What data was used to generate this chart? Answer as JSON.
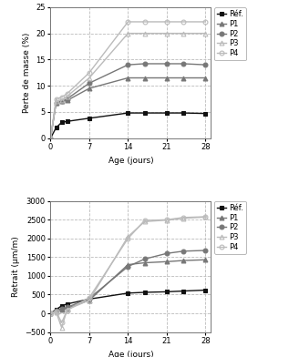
{
  "top_chart": {
    "ylabel": "Perte de masse (%)",
    "xlabel": "Age (jours)",
    "ylim": [
      0,
      25
    ],
    "yticks": [
      0,
      5,
      10,
      15,
      20,
      25
    ],
    "xticks": [
      0,
      7,
      14,
      21,
      28
    ],
    "series": {
      "Réf.": {
        "x": [
          0,
          1,
          2,
          3,
          7,
          14,
          17,
          21,
          24,
          28
        ],
        "y": [
          0,
          2.0,
          3.0,
          3.2,
          3.8,
          4.8,
          4.8,
          4.8,
          4.8,
          4.7
        ],
        "marker": "s",
        "color": "#111111",
        "fillstyle": "full",
        "linewidth": 1.0,
        "markersize": 3.5
      },
      "P1": {
        "x": [
          0,
          1,
          2,
          3,
          7,
          14,
          17,
          21,
          24,
          28
        ],
        "y": [
          0,
          6.8,
          7.0,
          7.2,
          9.5,
          11.5,
          11.5,
          11.5,
          11.5,
          11.5
        ],
        "marker": "^",
        "color": "#777777",
        "fillstyle": "full",
        "linewidth": 1.0,
        "markersize": 3.5
      },
      "P2": {
        "x": [
          0,
          1,
          2,
          3,
          7,
          14,
          17,
          21,
          24,
          28
        ],
        "y": [
          0,
          6.8,
          7.0,
          7.5,
          10.5,
          14.0,
          14.2,
          14.2,
          14.2,
          14.0
        ],
        "marker": "o",
        "color": "#777777",
        "fillstyle": "full",
        "linewidth": 1.0,
        "markersize": 3.5
      },
      "P3": {
        "x": [
          0,
          1,
          2,
          3,
          7,
          14,
          17,
          21,
          24,
          28
        ],
        "y": [
          0,
          7.0,
          7.3,
          8.0,
          11.5,
          20.0,
          20.0,
          20.0,
          20.0,
          20.0
        ],
        "marker": "^",
        "color": "#bbbbbb",
        "fillstyle": "none",
        "linewidth": 1.0,
        "markersize": 3.5
      },
      "P4": {
        "x": [
          0,
          1,
          2,
          3,
          7,
          14,
          17,
          21,
          24,
          28
        ],
        "y": [
          0,
          7.5,
          7.8,
          8.5,
          12.5,
          22.2,
          22.2,
          22.2,
          22.2,
          22.2
        ],
        "marker": "o",
        "color": "#bbbbbb",
        "fillstyle": "none",
        "linewidth": 1.0,
        "markersize": 3.5
      }
    }
  },
  "bottom_chart": {
    "ylabel": "Retrait (μm/m)",
    "xlabel": "Age (jours)",
    "ylim": [
      -500,
      3000
    ],
    "yticks": [
      -500,
      0,
      500,
      1000,
      1500,
      2000,
      2500,
      3000
    ],
    "xticks": [
      0,
      7,
      14,
      21,
      28
    ],
    "series": {
      "Réf.": {
        "x": [
          0,
          1,
          2,
          3,
          7,
          14,
          17,
          21,
          24,
          28
        ],
        "y": [
          0,
          100,
          200,
          250,
          380,
          540,
          560,
          575,
          595,
          620
        ],
        "marker": "s",
        "color": "#111111",
        "fillstyle": "full",
        "linewidth": 1.0,
        "markersize": 3.5
      },
      "P1": {
        "x": [
          0,
          1,
          2,
          3,
          7,
          14,
          17,
          21,
          24,
          28
        ],
        "y": [
          0,
          60,
          100,
          130,
          350,
          1300,
          1350,
          1380,
          1410,
          1430
        ],
        "marker": "^",
        "color": "#777777",
        "fillstyle": "full",
        "linewidth": 1.0,
        "markersize": 3.5
      },
      "P2": {
        "x": [
          0,
          1,
          2,
          3,
          7,
          14,
          17,
          21,
          24,
          28
        ],
        "y": [
          0,
          80,
          120,
          160,
          400,
          1250,
          1450,
          1600,
          1660,
          1680
        ],
        "marker": "o",
        "color": "#777777",
        "fillstyle": "full",
        "linewidth": 1.0,
        "markersize": 3.5
      },
      "P3": {
        "x": [
          0,
          1,
          2,
          3,
          7,
          14,
          17,
          21,
          24,
          28
        ],
        "y": [
          0,
          30,
          -380,
          100,
          350,
          2050,
          2450,
          2490,
          2540,
          2570
        ],
        "marker": "^",
        "color": "#bbbbbb",
        "fillstyle": "none",
        "linewidth": 1.0,
        "markersize": 3.5
      },
      "P4": {
        "x": [
          0,
          1,
          2,
          3,
          7,
          14,
          17,
          21,
          24,
          28
        ],
        "y": [
          0,
          50,
          -250,
          80,
          420,
          2000,
          2480,
          2500,
          2560,
          2580
        ],
        "marker": "o",
        "color": "#bbbbbb",
        "fillstyle": "none",
        "linewidth": 1.0,
        "markersize": 3.5
      }
    }
  },
  "legend_order": [
    "Réf.",
    "P1",
    "P2",
    "P3",
    "P4"
  ],
  "background_color": "#ffffff",
  "grid_color": "#bbbbbb"
}
